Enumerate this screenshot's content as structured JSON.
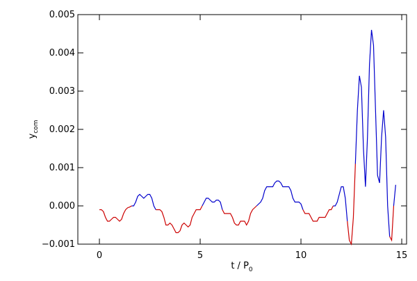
{
  "chart_data": {
    "type": "line",
    "xlabel": {
      "main": "t / P",
      "subscript": "0"
    },
    "ylabel": {
      "main": "y",
      "subscript": "com"
    },
    "xlim": [
      -1.07,
      15.24
    ],
    "ylim": [
      -0.001,
      0.005
    ],
    "xticks": [
      0,
      5,
      10,
      15
    ],
    "yticks": [
      {
        "value": -0.001,
        "label": "−0.001"
      },
      {
        "value": 0,
        "label": "0.000"
      },
      {
        "value": 0.001,
        "label": "0.001"
      },
      {
        "value": 0.002,
        "label": "0.002"
      },
      {
        "value": 0.003,
        "label": "0.003"
      },
      {
        "value": 0.004,
        "label": "0.004"
      },
      {
        "value": 0.005,
        "label": "0.005"
      }
    ],
    "color_below_zero": "#cc0000",
    "color_above_zero": "#0000cc",
    "x": [
      0,
      0.1,
      0.2,
      0.3,
      0.4,
      0.5,
      0.6,
      0.7,
      0.8,
      0.9,
      1,
      1.1,
      1.2,
      1.3,
      1.4,
      1.5,
      1.6,
      1.7,
      1.8,
      1.9,
      2,
      2.1,
      2.2,
      2.3,
      2.4,
      2.5,
      2.6,
      2.7,
      2.8,
      2.9,
      3,
      3.1,
      3.2,
      3.3,
      3.4,
      3.5,
      3.6,
      3.7,
      3.8,
      3.9,
      4,
      4.1,
      4.2,
      4.3,
      4.4,
      4.5,
      4.6,
      4.7,
      4.8,
      4.9,
      5,
      5.1,
      5.2,
      5.3,
      5.4,
      5.5,
      5.6,
      5.7,
      5.8,
      5.9,
      6,
      6.1,
      6.2,
      6.3,
      6.4,
      6.5,
      6.6,
      6.7,
      6.8,
      6.9,
      7,
      7.1,
      7.2,
      7.3,
      7.4,
      7.5,
      7.6,
      7.7,
      7.8,
      7.9,
      8,
      8.1,
      8.2,
      8.3,
      8.4,
      8.5,
      8.6,
      8.7,
      8.8,
      8.9,
      9,
      9.1,
      9.2,
      9.3,
      9.4,
      9.5,
      9.6,
      9.7,
      9.8,
      9.9,
      10,
      10.1,
      10.2,
      10.3,
      10.4,
      10.5,
      10.6,
      10.7,
      10.8,
      10.9,
      11,
      11.1,
      11.2,
      11.3,
      11.4,
      11.5,
      11.6,
      11.7,
      11.8,
      11.9,
      12,
      12.1,
      12.2,
      12.3,
      12.4,
      12.5,
      12.6,
      12.7,
      12.8,
      12.9,
      13,
      13.1,
      13.2,
      13.3,
      13.4,
      13.5,
      13.6,
      13.7,
      13.8,
      13.9,
      14,
      14.1,
      14.2,
      14.3,
      14.4,
      14.5,
      14.6,
      14.7
    ],
    "values": [
      -0.0001,
      -0.0001,
      -0.00015,
      -0.0003,
      -0.0004,
      -0.0004,
      -0.00035,
      -0.0003,
      -0.0003,
      -0.00035,
      -0.0004,
      -0.00035,
      -0.0002,
      -0.0001,
      -5e-05,
      -3e-05,
      0,
      0,
      0.0001,
      0.00025,
      0.0003,
      0.00025,
      0.0002,
      0.00025,
      0.0003,
      0.0003,
      0.0002,
      0,
      -0.0001,
      -0.0001,
      -0.0001,
      -0.00015,
      -0.0003,
      -0.0005,
      -0.0005,
      -0.00045,
      -0.0005,
      -0.0006,
      -0.0007,
      -0.0007,
      -0.00065,
      -0.0005,
      -0.00045,
      -0.0005,
      -0.00055,
      -0.0005,
      -0.0003,
      -0.0002,
      -0.0001,
      -0.0001,
      -0.0001,
      0,
      0.0001,
      0.0002,
      0.0002,
      0.00015,
      0.0001,
      0.0001,
      0.00015,
      0.00015,
      0.0001,
      -0.0001,
      -0.0002,
      -0.0002,
      -0.0002,
      -0.0002,
      -0.0003,
      -0.00045,
      -0.0005,
      -0.0005,
      -0.0004,
      -0.0004,
      -0.0004,
      -0.0005,
      -0.0004,
      -0.0002,
      -0.0001,
      -5e-05,
      0,
      5e-05,
      0.0001,
      0.0002,
      0.0004,
      0.0005,
      0.0005,
      0.0005,
      0.0005,
      0.0006,
      0.00065,
      0.00065,
      0.0006,
      0.0005,
      0.0005,
      0.0005,
      0.0005,
      0.0004,
      0.0002,
      0.0001,
      0.0001,
      0.0001,
      5e-05,
      -0.0001,
      -0.0002,
      -0.0002,
      -0.0002,
      -0.0003,
      -0.0004,
      -0.0004,
      -0.0004,
      -0.0003,
      -0.0003,
      -0.0003,
      -0.0003,
      -0.0002,
      -0.0001,
      -0.0001,
      0,
      0,
      0.0001,
      0.0003,
      0.0005,
      0.0005,
      0.0002,
      -0.0004,
      -0.0009,
      -0.001,
      -0.0003,
      0.0011,
      0.0025,
      0.0034,
      0.0031,
      0.0015,
      0.0005,
      0.0018,
      0.0037,
      0.0046,
      0.0042,
      0.0025,
      0.0008,
      0.0006,
      0.0018,
      0.0025,
      0.0018,
      0,
      -0.0008,
      -0.0009,
      0,
      0.00055
    ]
  }
}
